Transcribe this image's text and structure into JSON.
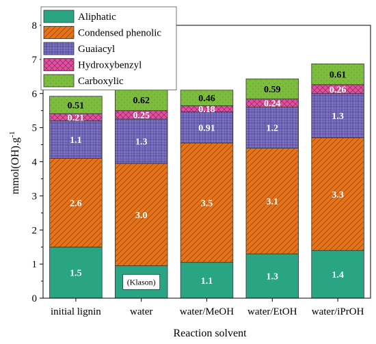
{
  "chart_data": {
    "type": "bar",
    "stacked": true,
    "categories": [
      "initial lignin",
      "water",
      "water/MeOH",
      "water/EtOH",
      "water/iPrOH"
    ],
    "xlabel": "Reaction solvent",
    "ylabel": "mmol(OH).g",
    "ylabel_superscript": "-1",
    "ylim": [
      0,
      8
    ],
    "yticks": [
      0,
      1,
      2,
      3,
      4,
      5,
      6,
      7,
      8
    ],
    "legend_position": "top-left",
    "series": [
      {
        "name": "Aliphatic",
        "color": "#2aa584",
        "pattern": "solid",
        "values": [
          1.5,
          0.95,
          1.05,
          1.3,
          1.4
        ],
        "labels": [
          "1.5",
          "",
          "1.1",
          "1.3",
          "1.4"
        ],
        "label_color": "#ffffff"
      },
      {
        "name": "Condensed phenolic",
        "color": "#e4731c",
        "pattern": "diagonal",
        "values": [
          2.6,
          3.0,
          3.5,
          3.1,
          3.3
        ],
        "labels": [
          "2.6",
          "3.0",
          "3.5",
          "3.1",
          "3.3"
        ],
        "label_color": "#ffffff"
      },
      {
        "name": "Guaiacyl",
        "color": "#7b6fcf",
        "pattern": "grid",
        "values": [
          1.1,
          1.3,
          0.91,
          1.2,
          1.3
        ],
        "labels": [
          "1.1",
          "1.3",
          "0.91",
          "1.2",
          "1.3"
        ],
        "label_color": "#ffffff"
      },
      {
        "name": "Hydroxybenzyl",
        "color": "#e64da1",
        "pattern": "crosshatch",
        "values": [
          0.21,
          0.25,
          0.18,
          0.24,
          0.26
        ],
        "labels": [
          "0.21",
          "0.25",
          "0.18",
          "0.24",
          "0.26"
        ],
        "label_color": "#ffffff"
      },
      {
        "name": "Carboxylic",
        "color": "#7dbd3e",
        "pattern": "dots",
        "values": [
          0.51,
          0.62,
          0.46,
          0.59,
          0.61
        ],
        "labels": [
          "0.51",
          "0.62",
          "0.46",
          "0.59",
          "0.61"
        ],
        "label_color": "#000000"
      }
    ],
    "annotations": [
      {
        "category": "water",
        "series": "Aliphatic",
        "text": "(Klason)"
      }
    ]
  }
}
